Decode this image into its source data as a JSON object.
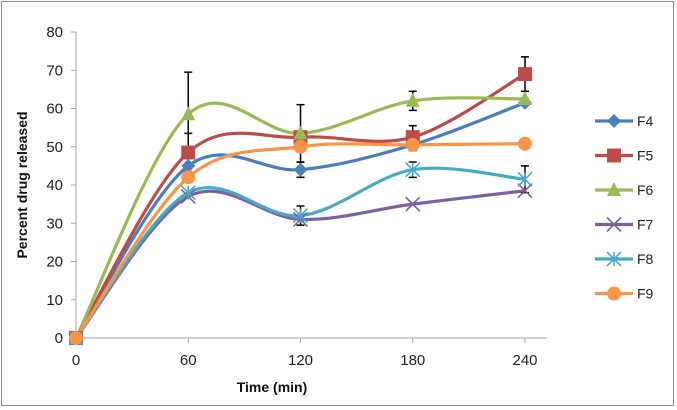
{
  "chart_data": {
    "type": "line",
    "title": "",
    "xlabel": "Time (min)",
    "ylabel": "Percent drug released",
    "x": [
      0,
      60,
      120,
      180,
      240
    ],
    "xticks": [
      "0",
      "60",
      "120",
      "180",
      "240"
    ],
    "yticks": [
      "0",
      "10",
      "20",
      "30",
      "40",
      "50",
      "60",
      "70",
      "80"
    ],
    "xlim": [
      0,
      240
    ],
    "ylim": [
      0,
      80
    ],
    "grid": false,
    "legend_position": "right",
    "smooth": true,
    "series": [
      {
        "name": "F4",
        "color": "#4A7EBB",
        "marker": "diamond",
        "values": [
          0,
          45,
          44,
          50.5,
          61.5
        ],
        "error": [
          0,
          3,
          2,
          1.5,
          0
        ]
      },
      {
        "name": "F5",
        "color": "#BE4B48",
        "marker": "square",
        "values": [
          0,
          48.5,
          52.5,
          52.5,
          69
        ],
        "error": [
          0,
          5,
          0,
          3,
          4.5
        ]
      },
      {
        "name": "F6",
        "color": "#98B954",
        "marker": "triangle",
        "values": [
          0,
          58.5,
          53.5,
          62,
          62.5
        ],
        "error": [
          0,
          11,
          7.5,
          2.5,
          0
        ]
      },
      {
        "name": "F7",
        "color": "#7D60A0",
        "marker": "x",
        "values": [
          0,
          37,
          31,
          35,
          38.5
        ],
        "error": [
          0,
          0,
          0,
          0,
          0
        ]
      },
      {
        "name": "F8",
        "color": "#46AAC5",
        "marker": "star",
        "values": [
          0,
          38,
          32,
          44,
          41.5
        ],
        "error": [
          0,
          0,
          2.5,
          2,
          3.5
        ]
      },
      {
        "name": "F9",
        "color": "#F79646",
        "marker": "circle",
        "values": [
          0,
          42,
          50,
          50.5,
          50.8
        ],
        "error": [
          0,
          0,
          0,
          0,
          0
        ]
      }
    ]
  }
}
